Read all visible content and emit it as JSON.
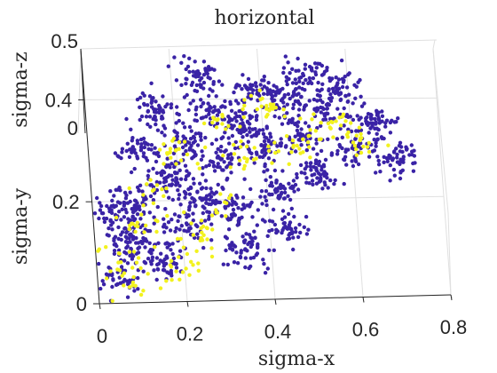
{
  "chart_data": {
    "type": "scatter",
    "projection": "3d",
    "title": "horizontal",
    "xlabel": "sigma-x",
    "ylabel": "sigma-y",
    "zlabel": "sigma-z",
    "xlim": [
      0,
      0.8
    ],
    "ylim": [
      0,
      0.5
    ],
    "zlim": [
      0,
      0.5
    ],
    "x_ticks": [
      0,
      0.2,
      0.4,
      0.6,
      0.8
    ],
    "x_tick_labels": [
      "0",
      "0.2",
      "0.4",
      "0.6",
      "0.8"
    ],
    "y_ticks": [
      0,
      0.2,
      0.4
    ],
    "y_tick_labels": [
      "0",
      "0.2",
      "0.4"
    ],
    "z_ticks": [
      0,
      0.5
    ],
    "z_tick_labels": [
      "0",
      "0.5"
    ],
    "grid": true,
    "colors": {
      "primary_points": "#3a23a6",
      "highlight_points": "#f2f21e",
      "axes": "#262626",
      "grid": "#e0e0e0"
    },
    "series": [
      {
        "color": "#3a23a6",
        "points": [
          [
            0.05,
            0.05
          ],
          [
            0.08,
            0.12
          ],
          [
            0.1,
            0.2
          ],
          [
            0.15,
            0.08
          ],
          [
            0.18,
            0.25
          ],
          [
            0.2,
            0.15
          ],
          [
            0.22,
            0.32
          ],
          [
            0.25,
            0.2
          ],
          [
            0.28,
            0.38
          ],
          [
            0.3,
            0.28
          ],
          [
            0.32,
            0.18
          ],
          [
            0.35,
            0.35
          ],
          [
            0.38,
            0.42
          ],
          [
            0.4,
            0.3
          ],
          [
            0.42,
            0.22
          ],
          [
            0.45,
            0.4
          ],
          [
            0.48,
            0.33
          ],
          [
            0.5,
            0.45
          ],
          [
            0.55,
            0.38
          ],
          [
            0.6,
            0.3
          ],
          [
            0.65,
            0.35
          ],
          [
            0.7,
            0.28
          ],
          [
            0.12,
            0.3
          ],
          [
            0.06,
            0.18
          ],
          [
            0.26,
            0.45
          ],
          [
            0.34,
            0.1
          ],
          [
            0.44,
            0.14
          ],
          [
            0.52,
            0.25
          ],
          [
            0.58,
            0.42
          ],
          [
            0.16,
            0.38
          ]
        ]
      },
      {
        "color": "#f2f21e",
        "points": [
          [
            0.05,
            0.08
          ],
          [
            0.1,
            0.15
          ],
          [
            0.14,
            0.22
          ],
          [
            0.2,
            0.3
          ],
          [
            0.24,
            0.12
          ],
          [
            0.3,
            0.36
          ],
          [
            0.36,
            0.28
          ],
          [
            0.42,
            0.38
          ],
          [
            0.48,
            0.3
          ],
          [
            0.55,
            0.35
          ],
          [
            0.08,
            0.04
          ],
          [
            0.18,
            0.06
          ],
          [
            0.28,
            0.18
          ],
          [
            0.62,
            0.32
          ]
        ]
      }
    ]
  }
}
